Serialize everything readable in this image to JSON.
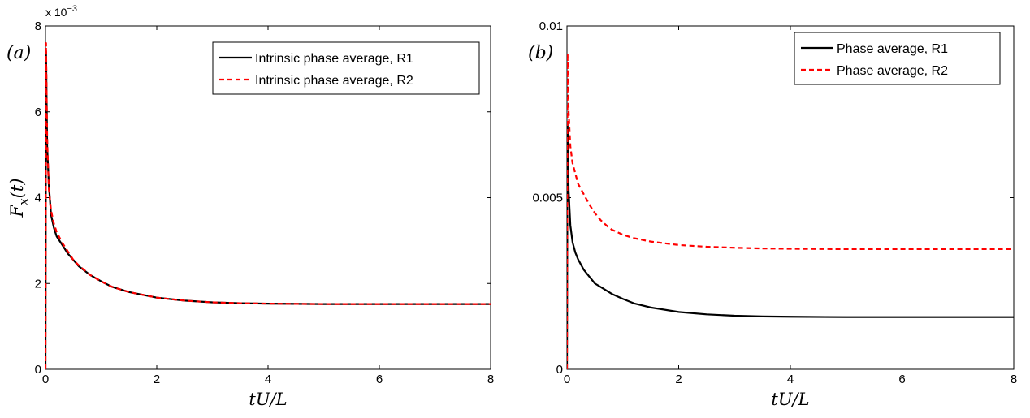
{
  "chart_data": [
    {
      "type": "line",
      "panel_label": "(a)",
      "xlabel": "tU/L",
      "ylabel": "F_x(t)",
      "xlim": [
        0,
        8
      ],
      "ylim": [
        0,
        8
      ],
      "y_multiplier": "x 10",
      "y_multiplier_exp": "−3",
      "xticks": [
        "0",
        "2",
        "4",
        "6",
        "8"
      ],
      "yticks": [
        "0",
        "2",
        "4",
        "6",
        "8"
      ],
      "ytick_values": [
        0,
        2,
        4,
        6,
        8
      ],
      "xtick_values": [
        0,
        2,
        4,
        6,
        8
      ],
      "grid": false,
      "legend_position": "top-right",
      "series": [
        {
          "name": "Intrinsic phase average, R1",
          "color": "#000000",
          "dash": "solid",
          "x": [
            0,
            0.01,
            0.03,
            0.06,
            0.1,
            0.15,
            0.2,
            0.3,
            0.4,
            0.5,
            0.6,
            0.7,
            0.8,
            1.0,
            1.2,
            1.5,
            2.0,
            2.5,
            3.0,
            3.5,
            4.0,
            5.0,
            6.0,
            7.0,
            8.0
          ],
          "y": [
            0,
            7.4,
            5.2,
            4.3,
            3.6,
            3.3,
            3.1,
            2.9,
            2.7,
            2.55,
            2.4,
            2.3,
            2.2,
            2.05,
            1.92,
            1.8,
            1.67,
            1.6,
            1.56,
            1.54,
            1.53,
            1.52,
            1.52,
            1.52,
            1.52
          ]
        },
        {
          "name": "Intrinsic phase average, R2",
          "color": "#ff0000",
          "dash": "dashed",
          "x": [
            0,
            0.01,
            0.03,
            0.06,
            0.1,
            0.15,
            0.2,
            0.3,
            0.4,
            0.5,
            0.6,
            0.7,
            0.8,
            1.0,
            1.2,
            1.5,
            2.0,
            2.5,
            3.0,
            3.5,
            4.0,
            5.0,
            6.0,
            7.0,
            8.0
          ],
          "y": [
            0,
            7.6,
            5.4,
            4.2,
            3.7,
            3.4,
            3.2,
            2.95,
            2.75,
            2.55,
            2.42,
            2.31,
            2.2,
            2.05,
            1.92,
            1.8,
            1.67,
            1.6,
            1.56,
            1.54,
            1.53,
            1.52,
            1.52,
            1.52,
            1.52
          ]
        }
      ]
    },
    {
      "type": "line",
      "panel_label": "(b)",
      "xlabel": "tU/L",
      "ylabel": "",
      "xlim": [
        0,
        8
      ],
      "ylim": [
        0,
        0.01
      ],
      "xticks": [
        "0",
        "2",
        "4",
        "6",
        "8"
      ],
      "yticks": [
        "0",
        "0.005",
        "0.01"
      ],
      "ytick_values": [
        0,
        0.005,
        0.01
      ],
      "xtick_values": [
        0,
        2,
        4,
        6,
        8
      ],
      "grid": false,
      "legend_position": "top-right",
      "series": [
        {
          "name": "Phase average, R1",
          "color": "#000000",
          "dash": "solid",
          "x": [
            0,
            0.01,
            0.03,
            0.06,
            0.1,
            0.15,
            0.2,
            0.3,
            0.4,
            0.5,
            0.6,
            0.7,
            0.8,
            1.0,
            1.2,
            1.5,
            2.0,
            2.5,
            3.0,
            3.5,
            4.0,
            5.0,
            6.0,
            7.0,
            8.0
          ],
          "y": [
            0,
            0.0072,
            0.0052,
            0.0042,
            0.0037,
            0.0034,
            0.0032,
            0.0029,
            0.0027,
            0.0025,
            0.0024,
            0.0023,
            0.0022,
            0.00205,
            0.00192,
            0.0018,
            0.00167,
            0.0016,
            0.00156,
            0.00154,
            0.00153,
            0.00152,
            0.00152,
            0.00152,
            0.00152
          ]
        },
        {
          "name": "Phase average, R2",
          "color": "#ff0000",
          "dash": "dashed",
          "x": [
            0,
            0.01,
            0.03,
            0.06,
            0.1,
            0.15,
            0.2,
            0.3,
            0.4,
            0.5,
            0.6,
            0.7,
            0.8,
            1.0,
            1.2,
            1.5,
            2.0,
            2.5,
            3.0,
            3.5,
            4.0,
            5.0,
            6.0,
            7.0,
            8.0
          ],
          "y": [
            0,
            0.0092,
            0.0075,
            0.0065,
            0.006,
            0.0057,
            0.0054,
            0.0051,
            0.0048,
            0.00455,
            0.00435,
            0.0042,
            0.00407,
            0.00392,
            0.00382,
            0.00372,
            0.00362,
            0.00357,
            0.00354,
            0.00352,
            0.00351,
            0.0035,
            0.0035,
            0.0035,
            0.0035
          ]
        }
      ]
    }
  ]
}
